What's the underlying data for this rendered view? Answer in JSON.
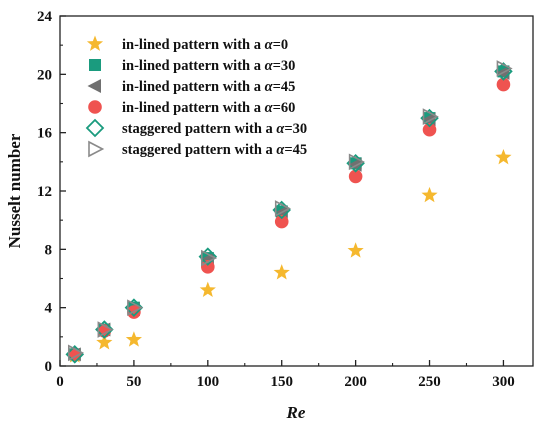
{
  "chart_data": {
    "type": "scatter",
    "xlabel": "Re",
    "ylabel": "Nusselt number",
    "xlim": [
      0,
      320
    ],
    "ylim": [
      0,
      24
    ],
    "xticks": [
      0,
      50,
      100,
      150,
      200,
      250,
      300
    ],
    "yticks": [
      0,
      4,
      8,
      12,
      16,
      20,
      24
    ],
    "grid": false,
    "legend_position": "top-left",
    "series": [
      {
        "legend_prefix": "in-lined pattern with a ",
        "legend_value": "=0",
        "marker": "star",
        "color": "#F5B82E",
        "x": [
          10,
          30,
          50,
          100,
          150,
          200,
          250,
          300
        ],
        "y": [
          0.7,
          1.6,
          1.8,
          5.2,
          6.4,
          7.9,
          11.7,
          14.3
        ]
      },
      {
        "legend_prefix": "in-lined pattern with a ",
        "legend_value": "=30",
        "marker": "square",
        "color": "#1A9B7E",
        "x": [
          10,
          30,
          50,
          100,
          150,
          200,
          250,
          300
        ],
        "y": [
          0.8,
          2.5,
          4.0,
          7.4,
          10.6,
          13.9,
          17.0,
          20.2
        ]
      },
      {
        "legend_prefix": "in-lined pattern with a ",
        "legend_value": "=45",
        "marker": "triangle-left",
        "color": "#707070",
        "x": [
          10,
          30,
          50,
          100,
          150,
          200,
          250,
          300
        ],
        "y": [
          0.8,
          2.5,
          3.9,
          7.3,
          10.5,
          13.8,
          16.9,
          20.1
        ]
      },
      {
        "legend_prefix": "in-lined pattern with a ",
        "legend_value": "=60",
        "marker": "circle",
        "color": "#EF5350",
        "x": [
          10,
          30,
          50,
          100,
          150,
          200,
          250,
          300
        ],
        "y": [
          0.8,
          2.4,
          3.7,
          6.8,
          9.9,
          13.0,
          16.2,
          19.3
        ]
      },
      {
        "legend_prefix": "staggered pattern with a ",
        "legend_value": "=30",
        "marker": "diamond-open",
        "color": "#1A9B7E",
        "x": [
          10,
          30,
          50,
          100,
          150,
          200,
          250,
          300
        ],
        "y": [
          0.8,
          2.5,
          4.0,
          7.5,
          10.7,
          13.9,
          17.0,
          20.2
        ]
      },
      {
        "legend_prefix": "staggered pattern with a ",
        "legend_value": "=45",
        "marker": "triangle-right-open",
        "color": "#8A8A8A",
        "x": [
          10,
          30,
          50,
          100,
          150,
          200,
          250,
          300
        ],
        "y": [
          0.9,
          2.5,
          4.0,
          7.4,
          10.8,
          14.0,
          17.1,
          20.4
        ]
      }
    ],
    "alpha_symbol": "α"
  }
}
